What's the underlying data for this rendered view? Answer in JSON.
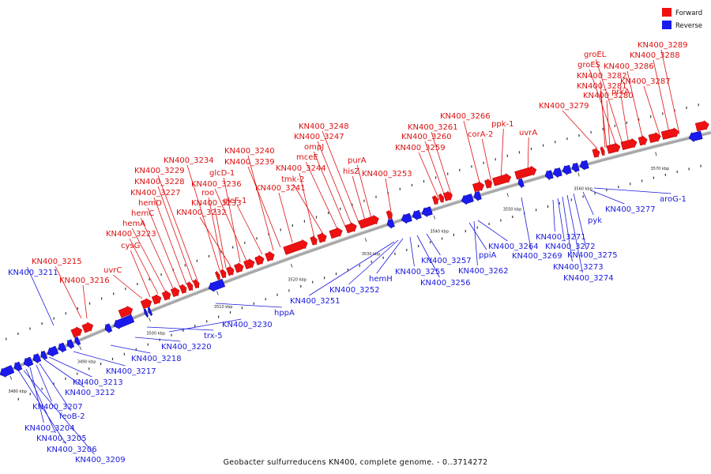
{
  "legend": {
    "items": [
      {
        "label": "Forward",
        "color": "#ee1111"
      },
      {
        "label": "Reverse",
        "color": "#1a1aee"
      }
    ]
  },
  "caption": "Geobacter sulfurreducens KN400, complete genome. - 0..3714272",
  "scale_labels": [
    "3480 kbp",
    "3490 kbp",
    "3500 kbp",
    "3510 kbp",
    "3520 kbp",
    "3530 kbp",
    "3540 kbp",
    "3550 kbp",
    "3560 kbp",
    "3570 kbp"
  ],
  "colors": {
    "forward": "#ee1111",
    "reverse": "#1a1aee",
    "backbone": "#aaaaaa"
  },
  "forward_labels": [
    "KN400_3215",
    "KN400_3216",
    "uvrC",
    "cysG",
    "KN400_3223",
    "hemA",
    "hemC",
    "hemD",
    "KN400_3227",
    "KN400_3228",
    "KN400_3229",
    "KN400_3234",
    "roo",
    "KN400_3233",
    "KN400_3232",
    "glcD-1",
    "KN400_3236",
    "glcF-1",
    "KN400_3240",
    "KN400_3239",
    "KN400_3241",
    "KN400_3244",
    "tmk-2",
    "mceE",
    "ompJ",
    "KN400_3247",
    "KN400_3248",
    "hisZ",
    "purA",
    "KN400_3253",
    "KN400_3259",
    "KN400_3260",
    "KN400_3261",
    "KN400_3266",
    "corA-2",
    "ppk-1",
    "uvrA",
    "KN400_3279",
    "prkA",
    "KN400_3280",
    "KN400_3281",
    "KN400_3282",
    "groES",
    "groEL",
    "KN400_3286",
    "KN400_3287",
    "KN400_3288",
    "KN400_3289"
  ],
  "reverse_labels": [
    "KN400_3211",
    "KN400_3213",
    "KN400_3212",
    "KN400_3207",
    "feoB-2",
    "KN400_3204",
    "KN400_3205",
    "KN400_3206",
    "KN400_3209",
    "KN400_3217",
    "KN400_3218",
    "KN400_3220",
    "trx-5",
    "KN400_3230",
    "hppA",
    "KN400_3251",
    "KN400_3252",
    "hemH",
    "KN400_3255",
    "KN400_3256",
    "KN400_3257",
    "ppiA",
    "KN400_3262",
    "KN400_3264",
    "KN400_3269",
    "KN400_3271",
    "KN400_3272",
    "KN400_3273",
    "KN400_3274",
    "KN400_3275",
    "pyk",
    "KN400_3277",
    "aroG-1"
  ]
}
